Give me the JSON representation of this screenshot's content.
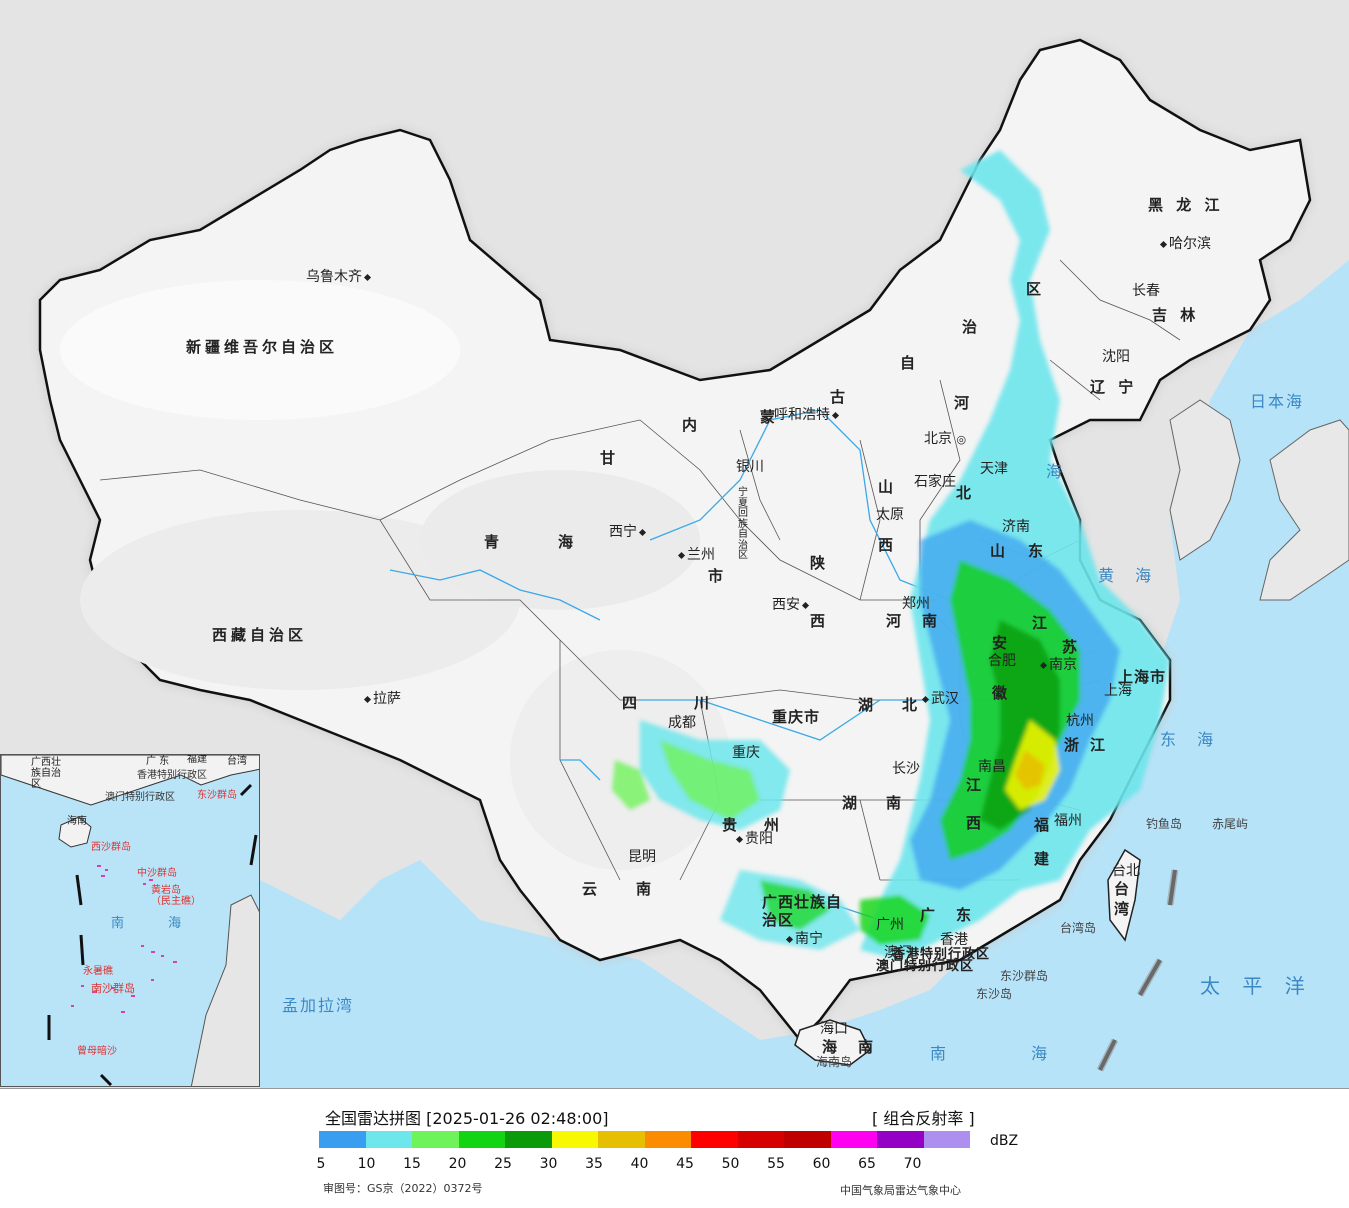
{
  "header": {
    "title": "全国雷达拼图 [2025-01-26 02:48:00]",
    "product": "[ 组合反射率 ]",
    "unit": "dBZ"
  },
  "legend": {
    "colors": [
      "#3a9ef0",
      "#6de6ec",
      "#6ff35a",
      "#12d412",
      "#0a9a0a",
      "#f8f800",
      "#e6c000",
      "#fb8c00",
      "#ff0000",
      "#d60000",
      "#c00000",
      "#ff00f0",
      "#9400c4",
      "#ad8ff0"
    ],
    "ticks": [
      "5",
      "10",
      "15",
      "20",
      "25",
      "30",
      "35",
      "40",
      "45",
      "50",
      "55",
      "60",
      "65",
      "70"
    ]
  },
  "footer": {
    "approval": "审图号：GS京（2022）0372号",
    "organization": "中国气象局雷达气象中心"
  },
  "provinces": {
    "xinjiang": "新疆维吾尔自治区",
    "tibet": "西藏自治区",
    "qinghai1": "青",
    "qinghai2": "海",
    "gansu": "甘",
    "neimeng": [
      "内",
      "蒙",
      "古",
      "自",
      "治",
      "区"
    ],
    "heilongjiang": "黑 龙 江",
    "jilin": "吉 林",
    "liaoning": "辽 宁",
    "hebei1": "河",
    "hebei2": "北",
    "shanxi1": "山",
    "shanxi2": "西",
    "shaanxi1": "陕",
    "shaanxi2": "西",
    "shandong1": "山",
    "shandong2": "东",
    "henan1": "河",
    "henan2": "南",
    "jiangsu1": "江",
    "jiangsu2": "苏",
    "anhui1": "安",
    "anhui2": "徽",
    "shanghai": "上海市",
    "zhejiang1": "浙",
    "zhejiang2": "江",
    "hubei1": "湖",
    "hubei2": "北",
    "hunan1": "湖",
    "hunan2": "南",
    "jiangxi1": "江",
    "jiangxi2": "西",
    "fujian1": "福",
    "fujian2": "建",
    "sichuan1": "四",
    "sichuan2": "川",
    "chongqing": "重庆市",
    "guizhou1": "贵",
    "guizhou2": "州",
    "yunnan1": "云",
    "yunnan2": "南",
    "guangxi": "广西壮族自治区",
    "guangdong1": "广",
    "guangdong2": "东",
    "hainan1": "海",
    "hainan2": "南",
    "taiwan1": "台",
    "taiwan2": "湾",
    "ningxia": "宁夏回族自治区",
    "gansu_shi": "市",
    "hongkong": "香港特别行政区",
    "macau": "澳门特别行政区"
  },
  "cities": {
    "urumqi": "乌鲁木齐",
    "lhasa": "拉萨",
    "xining": "西宁",
    "lanzhou": "兰州",
    "yinchuan": "银川",
    "huhehaote": "呼和浩特",
    "beijing": "北京",
    "tianjin": "天津",
    "shijiazhuang": "石家庄",
    "taiyuan": "太原",
    "jinan": "济南",
    "zhengzhou": "郑州",
    "xian": "西安",
    "hefei": "合肥",
    "nanjing": "南京",
    "shanghai": "上海",
    "hangzhou": "杭州",
    "wuhan": "武汉",
    "changsha": "长沙",
    "nanchang": "南昌",
    "fuzhou": "福州",
    "chengdu": "成都",
    "chongqing": "重庆",
    "guiyang": "贵阳",
    "kunming": "昆明",
    "nanning": "南宁",
    "guangzhou": "广州",
    "hongkong": "香港",
    "macau": "澳门",
    "haikou": "海口",
    "taibei": "台北",
    "harbin": "哈尔滨",
    "changchun": "长春",
    "shenyang": "沈阳"
  },
  "seas": {
    "japan_sea": "日本海",
    "yellow_sea": "黄 海",
    "bohai": "海",
    "east_sea": "东 海",
    "pacific": "太 平 洋",
    "south_sea": "南 海",
    "bengal": "孟加拉湾"
  },
  "islands": {
    "diaoyu": "钓鱼岛",
    "chiwei": "赤尾屿",
    "taiwan_island": "台湾岛",
    "dongsha1": "东沙群岛",
    "dongsha2": "东沙岛",
    "hainan_island": "海南岛"
  },
  "inset": {
    "guangxi": "广西壮族自治区",
    "guangdong": "广 东",
    "fujian": "福建",
    "taiwan": "台湾",
    "hk": "香港特别行政区",
    "macau": "澳门特别行政区",
    "dongsha": "东沙群岛",
    "hainan": "海南",
    "xisha": "西沙群岛",
    "zhongsha": "中沙群岛",
    "huangyan": "黄岩岛（民主礁）",
    "south_sea": "南 海",
    "nansha": "南沙群岛",
    "yongshu": "永暑礁",
    "zengmu": "曾母暗沙"
  }
}
